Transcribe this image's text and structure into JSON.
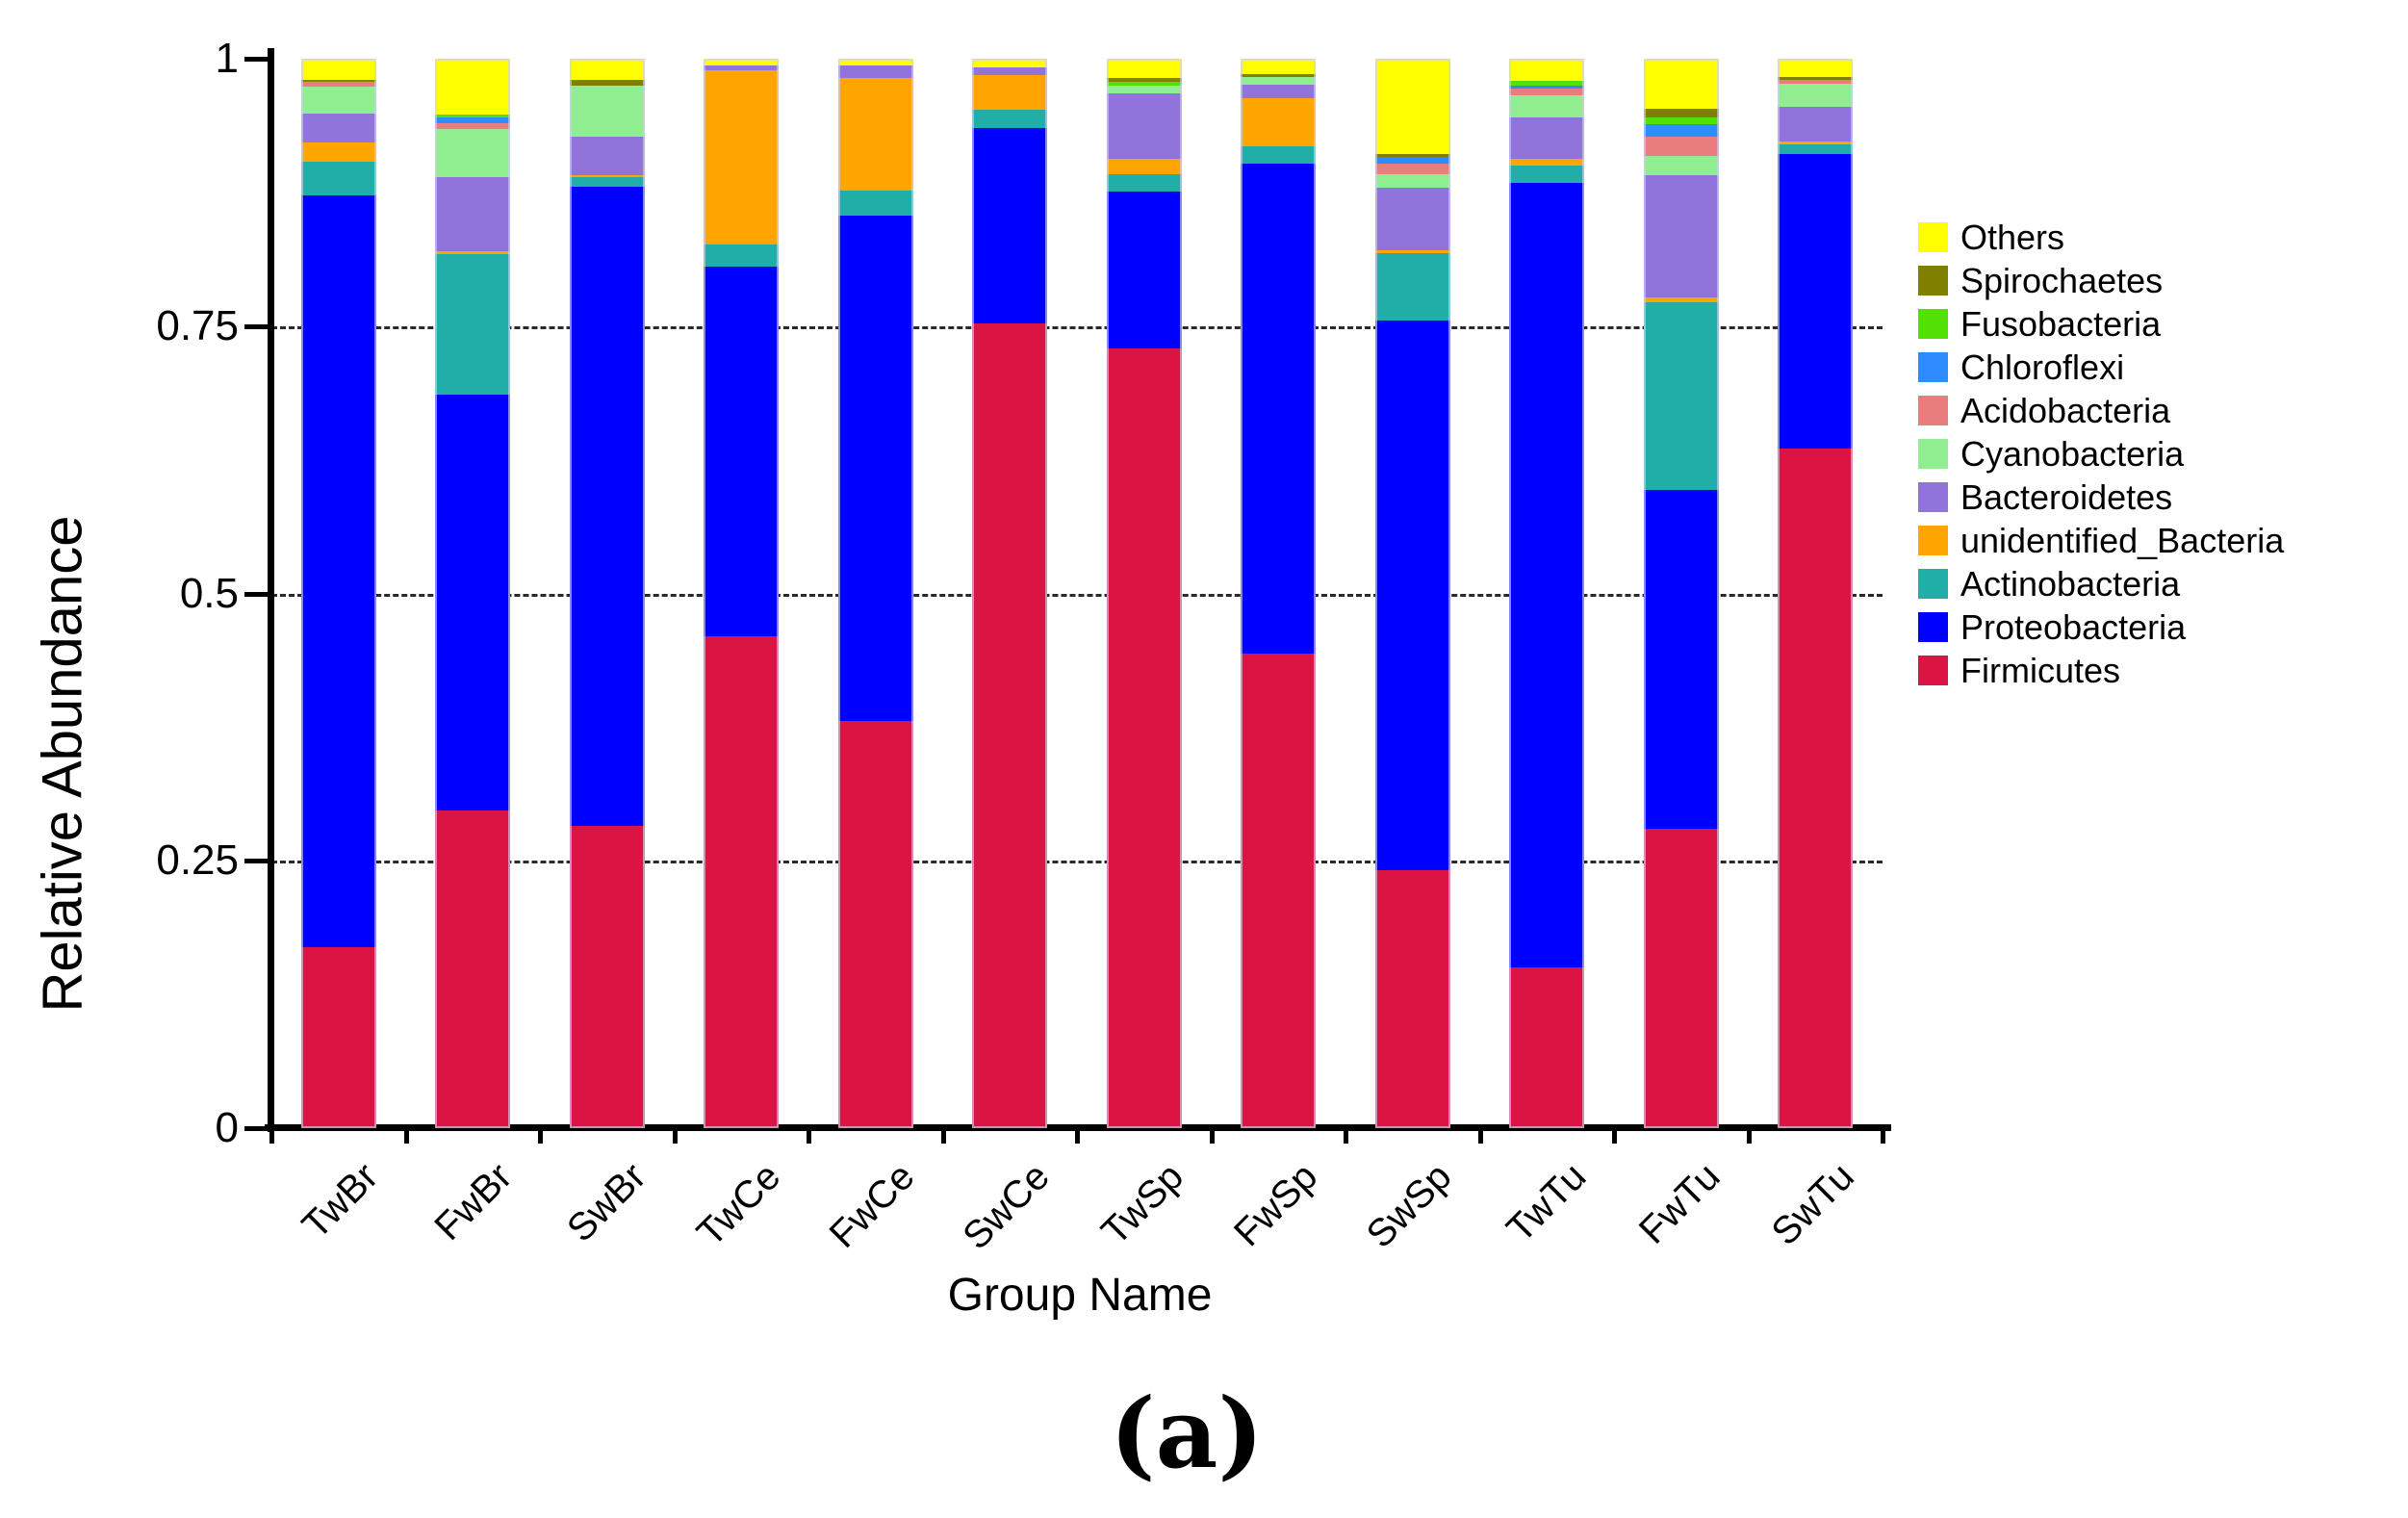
{
  "figure": {
    "caption": "(a)"
  },
  "chart_data": {
    "type": "bar",
    "stacked": true,
    "title": "",
    "xlabel": "Group Name",
    "ylabel": "Relative Abundance",
    "ylim": [
      0,
      1
    ],
    "yticks": [
      {
        "value": 0,
        "label": "0"
      },
      {
        "value": 0.25,
        "label": "0.25"
      },
      {
        "value": 0.5,
        "label": "0.5"
      },
      {
        "value": 0.75,
        "label": "0.75"
      },
      {
        "value": 1,
        "label": "1"
      }
    ],
    "grid": "horizontal dashed lines at 0.25, 0.5, 0.75 behind bars",
    "legend_position": "right, top-to-bottom is reverse of stacking order",
    "categories": [
      "TwBr",
      "FwBr",
      "SwBr",
      "TwCe",
      "FwCe",
      "SwCe",
      "TwSp",
      "FwSp",
      "SwSp",
      "TwTu",
      "FwTu",
      "SwTu"
    ],
    "series": [
      {
        "name": "Firmicutes",
        "color": "#DC1443",
        "values": [
          0.169,
          0.297,
          0.283,
          0.46,
          0.381,
          0.752,
          0.729,
          0.444,
          0.241,
          0.15,
          0.28,
          0.635
        ]
      },
      {
        "name": "Proteobacteria",
        "color": "#0000FF",
        "values": [
          0.703,
          0.389,
          0.597,
          0.346,
          0.472,
          0.183,
          0.147,
          0.458,
          0.514,
          0.734,
          0.317,
          0.276
        ]
      },
      {
        "name": "Actinobacteria",
        "color": "#21AEA8",
        "values": [
          0.032,
          0.131,
          0.009,
          0.02,
          0.024,
          0.017,
          0.016,
          0.016,
          0.063,
          0.016,
          0.175,
          0.009
        ]
      },
      {
        "name": "unidentified_Bacteria",
        "color": "#FFA500",
        "values": [
          0.018,
          0.003,
          0.002,
          0.163,
          0.105,
          0.033,
          0.014,
          0.045,
          0.003,
          0.006,
          0.005,
          0.003
        ]
      },
      {
        "name": "Bacteroidetes",
        "color": "#9173DC",
        "values": [
          0.027,
          0.069,
          0.036,
          0.005,
          0.012,
          0.007,
          0.062,
          0.013,
          0.058,
          0.039,
          0.114,
          0.032
        ]
      },
      {
        "name": "Cyanobacteria",
        "color": "#90EE90",
        "values": [
          0.025,
          0.045,
          0.048,
          0,
          0,
          0,
          0.007,
          0.007,
          0.013,
          0.021,
          0.018,
          0.022
        ]
      },
      {
        "name": "Acidobacteria",
        "color": "#E97D7D",
        "values": [
          0.004,
          0.006,
          0,
          0,
          0,
          0,
          0,
          0,
          0.01,
          0.006,
          0.018,
          0.003
        ]
      },
      {
        "name": "Chloroflexi",
        "color": "#2E8CFF",
        "values": [
          0,
          0.005,
          0,
          0,
          0,
          0,
          0,
          0,
          0.006,
          0.003,
          0.012,
          0
        ]
      },
      {
        "name": "Fusobacteria",
        "color": "#52E005",
        "values": [
          0,
          0.003,
          0,
          0,
          0,
          0,
          0.003,
          0,
          0,
          0.004,
          0.006,
          0
        ]
      },
      {
        "name": "Spirochaetes",
        "color": "#808000",
        "values": [
          0.002,
          0,
          0.005,
          0,
          0,
          0,
          0.004,
          0.003,
          0.003,
          0,
          0.008,
          0.003
        ]
      },
      {
        "name": "Others",
        "color": "#FFFF00",
        "values": [
          0.02,
          0.052,
          0.02,
          0.006,
          0.006,
          0.008,
          0.018,
          0.014,
          0.089,
          0.021,
          0.047,
          0.017
        ]
      }
    ]
  }
}
